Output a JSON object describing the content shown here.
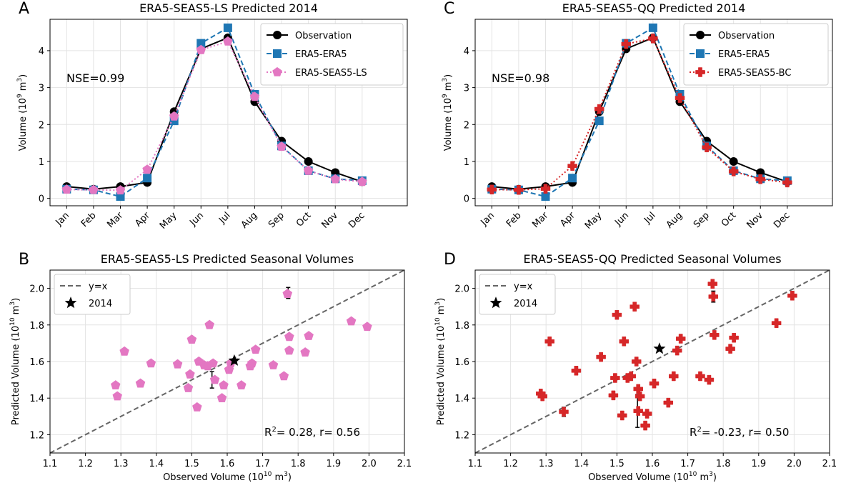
{
  "chart_data": [
    {
      "type": "line",
      "panel_letter": "A",
      "title": "ERA5-SEAS5-LS Predicted 2014",
      "ylabel_pre": "Volume (10",
      "ylabel_exp": "9",
      "ylabel_unit": " m",
      "ylabel_unit_exp": "3",
      "ylabel_post": ")",
      "ylim": [
        -0.2,
        4.85
      ],
      "yticks": [
        "0",
        "1",
        "2",
        "3",
        "4"
      ],
      "categories": [
        "Jan",
        "Feb",
        "Mar",
        "Apr",
        "May",
        "Jun",
        "Jul",
        "Aug",
        "Sep",
        "Oct",
        "Nov",
        "Dec"
      ],
      "annotation": "NSE=0.99",
      "annotation_color": "#e377c2",
      "legend": [
        "Observation",
        "ERA5-ERA5",
        "ERA5-SEAS5-LS"
      ],
      "series": [
        {
          "name": "Observation",
          "color": "#000000",
          "marker": "circle",
          "dash": "solid",
          "values": [
            0.32,
            0.25,
            0.32,
            0.43,
            2.35,
            4.05,
            4.35,
            2.62,
            1.55,
            1.0,
            0.7,
            0.45
          ]
        },
        {
          "name": "ERA5-ERA5",
          "color": "#1f77b4",
          "marker": "square",
          "dash": "dashed",
          "values": [
            0.25,
            0.23,
            0.05,
            0.55,
            2.1,
            4.2,
            4.62,
            2.82,
            1.42,
            0.75,
            0.53,
            0.48
          ]
        },
        {
          "name": "ERA5-SEAS5-LS",
          "color": "#e377c2",
          "marker": "pentagon",
          "dash": "dotted",
          "values": [
            0.24,
            0.23,
            0.22,
            0.78,
            2.22,
            4.02,
            4.25,
            2.75,
            1.4,
            0.75,
            0.52,
            0.45
          ]
        }
      ]
    },
    {
      "type": "line",
      "panel_letter": "C",
      "title": "ERA5-SEAS5-QQ Predicted 2014",
      "ylabel_pre": "Volume (10",
      "ylabel_exp": "9",
      "ylabel_unit": " m",
      "ylabel_unit_exp": "3",
      "ylabel_post": ")",
      "ylim": [
        -0.2,
        4.85
      ],
      "yticks": [
        "0",
        "1",
        "2",
        "3",
        "4"
      ],
      "categories": [
        "Jan",
        "Feb",
        "Mar",
        "Apr",
        "May",
        "Jun",
        "Jul",
        "Aug",
        "Sep",
        "Oct",
        "Nov",
        "Dec"
      ],
      "annotation": "NSE=0.98",
      "annotation_color": "#d62728",
      "legend": [
        "Observation",
        "ERA5-ERA5",
        "ERA5-SEAS5-BC"
      ],
      "series": [
        {
          "name": "Observation",
          "color": "#000000",
          "marker": "circle",
          "dash": "solid",
          "values": [
            0.32,
            0.25,
            0.32,
            0.43,
            2.35,
            4.05,
            4.35,
            2.62,
            1.55,
            1.0,
            0.7,
            0.45
          ]
        },
        {
          "name": "ERA5-ERA5",
          "color": "#1f77b4",
          "marker": "square",
          "dash": "dashed",
          "values": [
            0.25,
            0.23,
            0.05,
            0.55,
            2.1,
            4.2,
            4.62,
            2.82,
            1.42,
            0.75,
            0.53,
            0.48
          ]
        },
        {
          "name": "ERA5-SEAS5-BC",
          "color": "#d62728",
          "marker": "plus",
          "dash": "dotted",
          "values": [
            0.24,
            0.23,
            0.26,
            0.88,
            2.42,
            4.18,
            4.33,
            2.72,
            1.38,
            0.73,
            0.52,
            0.43
          ]
        }
      ]
    },
    {
      "type": "scatter",
      "panel_letter": "B",
      "title": "ERA5-SEAS5-LS Predicted Seasonal Volumes",
      "xlabel_pre": "Observed Volume (10",
      "xlabel_exp": "10",
      "xlabel_unit": " m",
      "xlabel_unit_exp": "3",
      "xlabel_post": ")",
      "ylabel_pre": "Predicted Volume (10",
      "ylabel_exp": "10",
      "ylabel_unit": " m",
      "ylabel_unit_exp": "3",
      "ylabel_post": ")",
      "xlim": [
        1.1,
        2.1
      ],
      "ylim": [
        1.1,
        2.1
      ],
      "xticks": [
        "1.1",
        "1.2",
        "1.3",
        "1.4",
        "1.5",
        "1.6",
        "1.7",
        "1.8",
        "1.9",
        "2.0",
        "2.1"
      ],
      "yticks": [
        "1.2",
        "1.4",
        "1.6",
        "1.8",
        "2.0"
      ],
      "legend": [
        "y=x",
        "2014"
      ],
      "stat_pre": "R",
      "stat_exp": "2",
      "stat_post": "= 0.28, r= 0.56",
      "color": "#e377c2",
      "marker": "pentagon",
      "points": [
        [
          1.285,
          1.47
        ],
        [
          1.29,
          1.41
        ],
        [
          1.31,
          1.655
        ],
        [
          1.355,
          1.48
        ],
        [
          1.385,
          1.59
        ],
        [
          1.46,
          1.585
        ],
        [
          1.49,
          1.455
        ],
        [
          1.495,
          1.53
        ],
        [
          1.5,
          1.72
        ],
        [
          1.515,
          1.35
        ],
        [
          1.52,
          1.6
        ],
        [
          1.535,
          1.58
        ],
        [
          1.545,
          1.575
        ],
        [
          1.55,
          1.8
        ],
        [
          1.56,
          1.59
        ],
        [
          1.565,
          1.5
        ],
        [
          1.585,
          1.4
        ],
        [
          1.59,
          1.47
        ],
        [
          1.605,
          1.555
        ],
        [
          1.61,
          1.59
        ],
        [
          1.64,
          1.47
        ],
        [
          1.665,
          1.575
        ],
        [
          1.67,
          1.59
        ],
        [
          1.68,
          1.665
        ],
        [
          1.73,
          1.58
        ],
        [
          1.76,
          1.52
        ],
        [
          1.77,
          1.97
        ],
        [
          1.775,
          1.66
        ],
        [
          1.775,
          1.735
        ],
        [
          1.82,
          1.65
        ],
        [
          1.83,
          1.74
        ],
        [
          1.95,
          1.82
        ],
        [
          1.995,
          1.79
        ]
      ],
      "errorbars": [
        [
          1.557,
          1.455,
          1.545
        ],
        [
          1.585,
          1.385,
          1.415
        ],
        [
          1.772,
          1.945,
          2.005
        ]
      ],
      "highlight_2014": [
        1.62,
        1.605
      ]
    },
    {
      "type": "scatter",
      "panel_letter": "D",
      "title": "ERA5-SEAS5-QQ Predicted Seasonal Volumes",
      "xlabel_pre": "Observed Volume (10",
      "xlabel_exp": "10",
      "xlabel_unit": " m",
      "xlabel_unit_exp": "3",
      "xlabel_post": ")",
      "ylabel_pre": "Predicted Volume (10",
      "ylabel_exp": "10",
      "ylabel_unit": " m",
      "ylabel_unit_exp": "3",
      "ylabel_post": ")",
      "xlim": [
        1.1,
        2.1
      ],
      "ylim": [
        1.1,
        2.1
      ],
      "xticks": [
        "1.1",
        "1.2",
        "1.3",
        "1.4",
        "1.5",
        "1.6",
        "1.7",
        "1.8",
        "1.9",
        "2.0",
        "2.1"
      ],
      "yticks": [
        "1.2",
        "1.4",
        "1.6",
        "1.8",
        "2.0"
      ],
      "legend": [
        "y=x",
        "2014"
      ],
      "stat_pre": "R",
      "stat_exp": "2",
      "stat_post": "= -0.23, r= 0.50",
      "color": "#d62728",
      "marker": "plus",
      "points": [
        [
          1.285,
          1.425
        ],
        [
          1.29,
          1.41
        ],
        [
          1.31,
          1.71
        ],
        [
          1.35,
          1.325
        ],
        [
          1.385,
          1.55
        ],
        [
          1.455,
          1.625
        ],
        [
          1.49,
          1.415
        ],
        [
          1.495,
          1.51
        ],
        [
          1.5,
          1.855
        ],
        [
          1.515,
          1.305
        ],
        [
          1.52,
          1.71
        ],
        [
          1.53,
          1.51
        ],
        [
          1.54,
          1.52
        ],
        [
          1.55,
          1.9
        ],
        [
          1.555,
          1.6
        ],
        [
          1.56,
          1.45
        ],
        [
          1.56,
          1.33
        ],
        [
          1.565,
          1.41
        ],
        [
          1.58,
          1.25
        ],
        [
          1.585,
          1.315
        ],
        [
          1.605,
          1.48
        ],
        [
          1.645,
          1.375
        ],
        [
          1.66,
          1.52
        ],
        [
          1.67,
          1.66
        ],
        [
          1.68,
          1.725
        ],
        [
          1.735,
          1.52
        ],
        [
          1.76,
          1.5
        ],
        [
          1.77,
          2.025
        ],
        [
          1.772,
          1.955
        ],
        [
          1.775,
          1.745
        ],
        [
          1.82,
          1.67
        ],
        [
          1.83,
          1.73
        ],
        [
          1.95,
          1.81
        ],
        [
          1.995,
          1.96
        ]
      ],
      "errorbars": [
        [
          1.35,
          1.3,
          1.35
        ],
        [
          1.558,
          1.24,
          1.42
        ],
        [
          1.772,
          1.925,
          1.985
        ]
      ],
      "highlight_2014": [
        1.62,
        1.67
      ]
    }
  ]
}
